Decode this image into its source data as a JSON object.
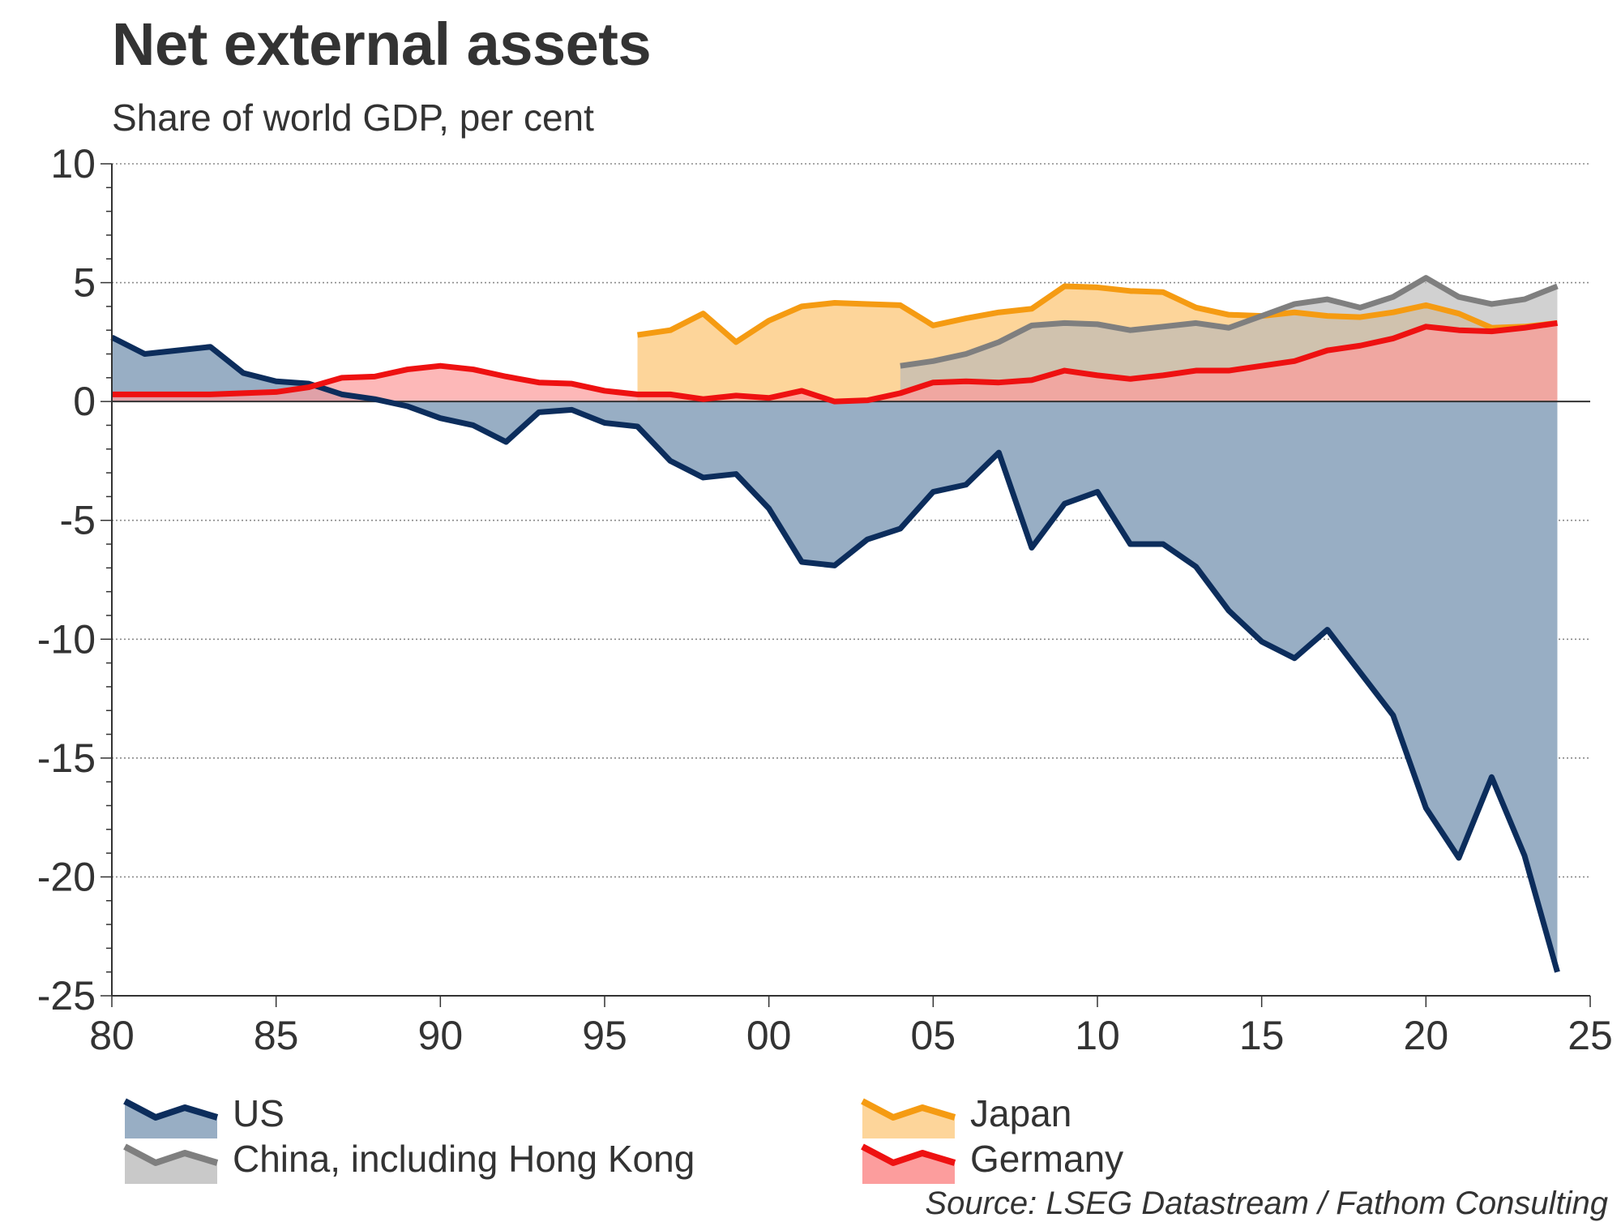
{
  "chart_data": {
    "type": "area",
    "title": "Net external assets",
    "subtitle": "Share of world GDP, per cent",
    "xlabel": "",
    "ylabel": "",
    "xlim": [
      1980,
      2025
    ],
    "ylim": [
      -25,
      10
    ],
    "x_ticks": [
      {
        "value": 1980,
        "label": "80"
      },
      {
        "value": 1985,
        "label": "85"
      },
      {
        "value": 1990,
        "label": "90"
      },
      {
        "value": 1995,
        "label": "95"
      },
      {
        "value": 2000,
        "label": "00"
      },
      {
        "value": 2005,
        "label": "05"
      },
      {
        "value": 2010,
        "label": "10"
      },
      {
        "value": 2015,
        "label": "15"
      },
      {
        "value": 2020,
        "label": "20"
      },
      {
        "value": 2025,
        "label": "25"
      }
    ],
    "y_ticks": [
      {
        "value": 10,
        "label": "10"
      },
      {
        "value": 5,
        "label": "5"
      },
      {
        "value": 0,
        "label": "0"
      },
      {
        "value": -5,
        "label": "-5"
      },
      {
        "value": -10,
        "label": "-10"
      },
      {
        "value": -15,
        "label": "-15"
      },
      {
        "value": -20,
        "label": "-20"
      },
      {
        "value": -25,
        "label": "-25"
      }
    ],
    "grid": true,
    "legend_position": "bottom",
    "series": [
      {
        "name": "US",
        "key": "us",
        "line_color": "#0c2d5c",
        "fill_color": "#98aec4",
        "x": [
          1980,
          1981,
          1982,
          1983,
          1984,
          1985,
          1986,
          1987,
          1988,
          1989,
          1990,
          1991,
          1992,
          1993,
          1994,
          1995,
          1996,
          1997,
          1998,
          1999,
          2000,
          2001,
          2002,
          2003,
          2004,
          2005,
          2006,
          2007,
          2008,
          2009,
          2010,
          2011,
          2012,
          2013,
          2014,
          2015,
          2016,
          2017,
          2018,
          2019,
          2020,
          2021,
          2022,
          2023,
          2024
        ],
        "values": [
          2.7,
          2.0,
          2.15,
          2.3,
          1.2,
          0.85,
          0.75,
          0.3,
          0.1,
          -0.2,
          -0.7,
          -1.0,
          -1.7,
          -0.45,
          -0.35,
          -0.9,
          -1.05,
          -2.5,
          -3.2,
          -3.05,
          -4.5,
          -6.75,
          -6.9,
          -5.8,
          -5.35,
          -3.8,
          -3.5,
          -2.15,
          -6.15,
          -4.3,
          -3.8,
          -6.0,
          -6.0,
          -6.95,
          -8.8,
          -10.1,
          -10.8,
          -9.6,
          -11.4,
          -13.2,
          -17.1,
          -19.2,
          -15.8,
          -19.1,
          -24.0
        ]
      },
      {
        "name": "Japan",
        "key": "japan",
        "line_color": "#f59b12",
        "fill_color": "#fdd59a",
        "x": [
          1996,
          1997,
          1998,
          1999,
          2000,
          2001,
          2002,
          2003,
          2004,
          2005,
          2006,
          2007,
          2008,
          2009,
          2010,
          2011,
          2012,
          2013,
          2014,
          2015,
          2016,
          2017,
          2018,
          2019,
          2020,
          2021,
          2022,
          2023,
          2024
        ],
        "values": [
          2.8,
          3.0,
          3.7,
          2.5,
          3.4,
          4.0,
          4.15,
          4.1,
          4.05,
          3.2,
          3.5,
          3.75,
          3.9,
          4.85,
          4.8,
          4.65,
          4.6,
          3.95,
          3.65,
          3.6,
          3.75,
          3.6,
          3.55,
          3.75,
          4.05,
          3.7,
          3.1,
          3.15,
          3.3
        ]
      },
      {
        "name": "China, including Hong Kong",
        "key": "china",
        "line_color": "#7f7f7f",
        "fill_color": "#b8b8b8",
        "x": [
          2004,
          2005,
          2006,
          2007,
          2008,
          2009,
          2010,
          2011,
          2012,
          2013,
          2014,
          2015,
          2016,
          2017,
          2018,
          2019,
          2020,
          2021,
          2022,
          2023,
          2024
        ],
        "values": [
          1.5,
          1.7,
          2.0,
          2.5,
          3.2,
          3.3,
          3.25,
          3.0,
          3.15,
          3.3,
          3.1,
          3.6,
          4.1,
          4.3,
          3.95,
          4.4,
          5.2,
          4.4,
          4.1,
          4.3,
          4.85
        ]
      },
      {
        "name": "Germany",
        "key": "germany",
        "line_color": "#ee1111",
        "fill_color": "#fc9d9d",
        "x": [
          1980,
          1981,
          1982,
          1983,
          1984,
          1985,
          1986,
          1987,
          1988,
          1989,
          1990,
          1991,
          1992,
          1993,
          1994,
          1995,
          1996,
          1997,
          1998,
          1999,
          2000,
          2001,
          2002,
          2003,
          2004,
          2005,
          2006,
          2007,
          2008,
          2009,
          2010,
          2011,
          2012,
          2013,
          2014,
          2015,
          2016,
          2017,
          2018,
          2019,
          2020,
          2021,
          2022,
          2023,
          2024
        ],
        "values": [
          0.3,
          0.3,
          0.3,
          0.3,
          0.35,
          0.4,
          0.6,
          1.0,
          1.05,
          1.35,
          1.5,
          1.35,
          1.05,
          0.8,
          0.75,
          0.45,
          0.3,
          0.3,
          0.1,
          0.25,
          0.15,
          0.45,
          0.0,
          0.05,
          0.35,
          0.8,
          0.85,
          0.8,
          0.9,
          1.3,
          1.1,
          0.95,
          1.1,
          1.3,
          1.3,
          1.5,
          1.7,
          2.15,
          2.35,
          2.65,
          3.15,
          3.0,
          2.95,
          3.1,
          3.3
        ]
      }
    ]
  },
  "legend": {
    "items": [
      {
        "label": "US"
      },
      {
        "label": "Japan"
      },
      {
        "label": "China, including Hong Kong"
      },
      {
        "label": "Germany"
      }
    ]
  },
  "source": "Source: LSEG Datastream / Fathom Consulting"
}
